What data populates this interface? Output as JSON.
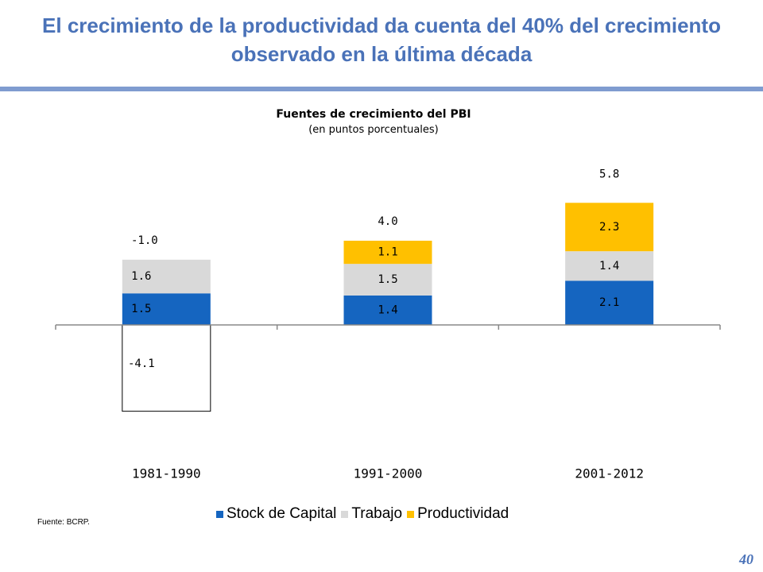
{
  "slide": {
    "title_line1": "El crecimiento de la productividad da cuenta del 40% del crecimiento",
    "title_line2": "observado en la última década",
    "source": "Fuente: BCRP.",
    "page_number": "40"
  },
  "chart_data": {
    "type": "bar",
    "stacked": true,
    "title": "Fuentes de crecimiento del PBI",
    "subtitle": "(en puntos porcentuales)",
    "categories": [
      "1981-1990",
      "1991-2000",
      "2001-2012"
    ],
    "series": [
      {
        "name": "Stock de Capital",
        "color": "#1565C0",
        "values": [
          1.5,
          1.4,
          2.1
        ]
      },
      {
        "name": "Trabajo",
        "color": "#D9D9D9",
        "values": [
          1.6,
          1.5,
          1.4
        ]
      },
      {
        "name": "Productividad",
        "color": "#FFC000",
        "values": [
          -4.1,
          1.1,
          2.3
        ]
      }
    ],
    "segment_labels": [
      [
        "1.5",
        "1.4",
        "2.1"
      ],
      [
        "1.6",
        "1.5",
        "1.4"
      ],
      [
        "-4.1",
        "1.1",
        "2.3"
      ]
    ],
    "totals": [
      -1.0,
      4.0,
      5.8
    ],
    "total_labels": [
      "-1.0",
      "4.0",
      "5.8"
    ],
    "legend_position": "bottom"
  }
}
